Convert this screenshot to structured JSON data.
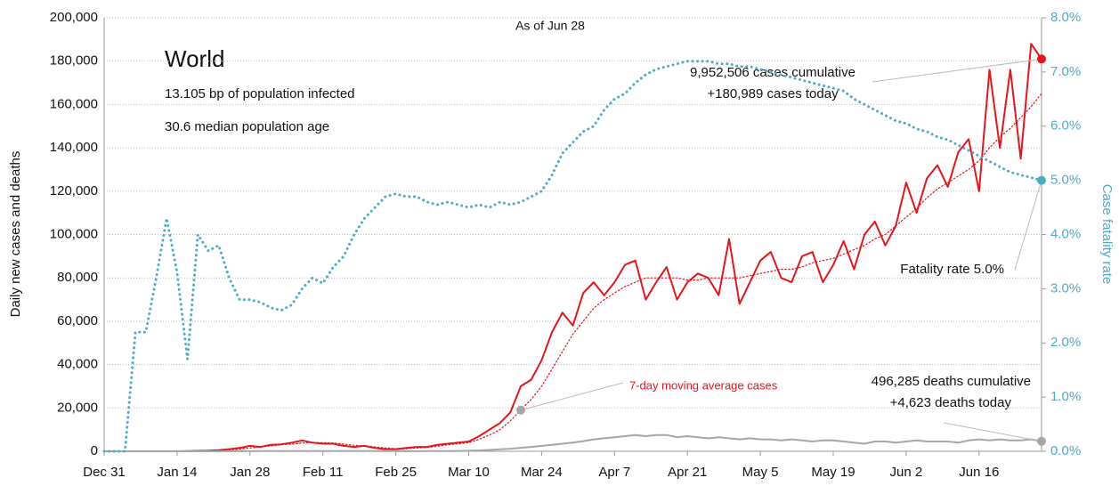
{
  "chart_data": {
    "type": "line",
    "title": "World",
    "subtitle": "As of Jun 28",
    "notes": [
      "13.105 bp of population infected",
      "30.6 median population age"
    ],
    "annotations": {
      "cases_cumulative": "9,952,506 cases cumulative",
      "cases_today": "+180,989 cases today",
      "fatality": "Fatality rate 5.0%",
      "moving_average": "7-day moving average cases",
      "deaths_cumulative": "496,285 deaths cumulative",
      "deaths_today": "+4,623 deaths today"
    },
    "ylabel": "Daily new cases and deaths",
    "y2label": "Case fatality rate",
    "categories": [
      "Dec 31",
      null,
      null,
      null,
      null,
      null,
      null,
      "Jan 14",
      null,
      null,
      null,
      null,
      null,
      null,
      "Jan 28",
      null,
      null,
      null,
      null,
      null,
      null,
      "Feb 11",
      null,
      null,
      null,
      null,
      null,
      null,
      "Feb 25",
      null,
      null,
      null,
      null,
      null,
      null,
      "Mar 10",
      null,
      null,
      null,
      null,
      null,
      null,
      "Mar 24",
      null,
      null,
      null,
      null,
      null,
      null,
      "Apr 7",
      null,
      null,
      null,
      null,
      null,
      null,
      "Apr 21",
      null,
      null,
      null,
      null,
      null,
      null,
      "May 5",
      null,
      null,
      null,
      null,
      null,
      null,
      "May 19",
      null,
      null,
      null,
      null,
      null,
      null,
      "Jun 2",
      null,
      null,
      null,
      null,
      null,
      null,
      "Jun 16",
      null,
      null,
      null,
      null,
      null,
      null
    ],
    "series": [
      {
        "color": "#e8141b",
        "line_style": "solid",
        "values": [
          0,
          0,
          0,
          0,
          0,
          0,
          0,
          0,
          100,
          200,
          300,
          500,
          1000,
          1500,
          2500,
          2000,
          3000,
          3200,
          4000,
          5000,
          4000,
          3500,
          3500,
          2500,
          2000,
          2500,
          1500,
          1000,
          1000,
          1500,
          2000,
          2000,
          3000,
          3500,
          4000,
          4500,
          7000,
          10000,
          13000,
          18000,
          30000,
          33000,
          42000,
          55000,
          64000,
          58000,
          73000,
          78000,
          72000,
          78000,
          86000,
          88000,
          70000,
          78000,
          85000,
          70000,
          78000,
          82000,
          80000,
          72000,
          98000,
          68000,
          78000,
          88000,
          92000,
          80000,
          78000,
          90000,
          92000,
          78000,
          86000,
          97000,
          84000,
          100000,
          106000,
          95000,
          104000,
          124000,
          110000,
          126000,
          132000,
          122000,
          138000,
          144000,
          120000,
          176000,
          140000,
          176000,
          135000,
          188000,
          180989
        ]
      },
      {
        "name": "7-day moving average cases",
        "color": "#e8141b",
        "line_style": "dotted",
        "values": [
          0,
          0,
          0,
          0,
          0,
          0,
          0,
          0,
          50,
          100,
          200,
          350,
          600,
          1000,
          1500,
          2000,
          2500,
          3000,
          3300,
          3800,
          4000,
          4000,
          3800,
          3300,
          2800,
          2500,
          2000,
          1500,
          1200,
          1200,
          1500,
          1800,
          2300,
          3000,
          3500,
          4000,
          5500,
          7500,
          10000,
          14000,
          19000,
          24000,
          30000,
          38000,
          46000,
          54000,
          60000,
          66000,
          70000,
          73000,
          76000,
          78000,
          80000,
          80000,
          80000,
          80000,
          79000,
          79000,
          80000,
          80000,
          80000,
          80000,
          81000,
          82000,
          83000,
          84000,
          84000,
          85000,
          87000,
          88000,
          89000,
          91000,
          93000,
          95000,
          98000,
          100000,
          104000,
          108000,
          112000,
          117000,
          121000,
          124000,
          127000,
          130000,
          134000,
          140000,
          145000,
          149000,
          154000,
          159000,
          165000
        ]
      },
      {
        "color": "#a6a6a6",
        "line_style": "solid",
        "values": [
          0,
          0,
          0,
          0,
          0,
          0,
          0,
          0,
          0,
          0,
          0,
          20,
          40,
          50,
          60,
          70,
          80,
          90,
          100,
          110,
          110,
          120,
          130,
          130,
          120,
          110,
          100,
          80,
          70,
          60,
          60,
          70,
          80,
          100,
          150,
          250,
          400,
          600,
          900,
          1200,
          1600,
          2000,
          2500,
          3000,
          3500,
          4000,
          4700,
          5500,
          6000,
          6500,
          7000,
          7500,
          7000,
          7500,
          7500,
          6500,
          7000,
          6500,
          6000,
          6500,
          6000,
          5500,
          6000,
          5500,
          5500,
          5000,
          5500,
          5000,
          4500,
          5000,
          5000,
          4500,
          4000,
          3500,
          4500,
          4500,
          4000,
          4500,
          5000,
          4500,
          4500,
          4500,
          4000,
          5000,
          5500,
          5000,
          5500,
          5000,
          5000,
          5500,
          4623
        ]
      },
      {
        "color": "#4bacc6",
        "line_style": "dotted-thick",
        "axis": "y2",
        "values": [
          0,
          0,
          0,
          2.2,
          2.2,
          3.2,
          4.3,
          3.3,
          1.7,
          4.0,
          3.7,
          3.8,
          3.2,
          2.8,
          2.8,
          2.75,
          2.65,
          2.6,
          2.7,
          3.0,
          3.2,
          3.1,
          3.4,
          3.6,
          4.0,
          4.3,
          4.5,
          4.7,
          4.75,
          4.7,
          4.7,
          4.6,
          4.55,
          4.6,
          4.55,
          4.5,
          4.55,
          4.5,
          4.6,
          4.55,
          4.6,
          4.7,
          4.8,
          5.1,
          5.5,
          5.7,
          5.9,
          6.0,
          6.3,
          6.5,
          6.6,
          6.8,
          6.95,
          7.05,
          7.1,
          7.15,
          7.2,
          7.2,
          7.2,
          7.15,
          7.15,
          7.1,
          7.1,
          7.05,
          7.0,
          6.95,
          6.9,
          6.85,
          6.8,
          6.75,
          6.7,
          6.65,
          6.5,
          6.4,
          6.3,
          6.2,
          6.1,
          6.05,
          5.95,
          5.9,
          5.8,
          5.75,
          5.65,
          5.55,
          5.45,
          5.35,
          5.25,
          5.15,
          5.1,
          5.05,
          5.0
        ]
      }
    ],
    "ylim": [
      0,
      200000
    ],
    "yticks": [
      0,
      {
        "value": 20000,
        "label": "20,000"
      },
      {
        "value": 40000,
        "label": "40,000"
      },
      {
        "value": 60000,
        "label": "60,000"
      },
      {
        "value": 80000,
        "label": "80,000"
      },
      {
        "value": 100000,
        "label": "100,000"
      },
      {
        "value": 120000,
        "label": "120,000"
      },
      {
        "value": 140000,
        "label": "140,000"
      },
      {
        "value": 160000,
        "label": "160,000"
      },
      {
        "value": 180000,
        "label": "180,000"
      },
      {
        "value": 200000,
        "label": "200,000"
      }
    ],
    "y2lim": [
      0,
      8
    ],
    "y2ticks": [
      {
        "value": 0,
        "label": "0.0%"
      },
      {
        "value": 1,
        "label": "1.0%"
      },
      {
        "value": 2,
        "label": "2.0%"
      },
      {
        "value": 3,
        "label": "3.0%"
      },
      {
        "value": 4,
        "label": "4.0%"
      },
      {
        "value": 5,
        "label": "5.0%"
      },
      {
        "value": 6,
        "label": "6.0%"
      },
      {
        "value": 7,
        "label": "7.0%"
      },
      {
        "value": 8,
        "label": "8.0%"
      }
    ],
    "grid": true
  }
}
